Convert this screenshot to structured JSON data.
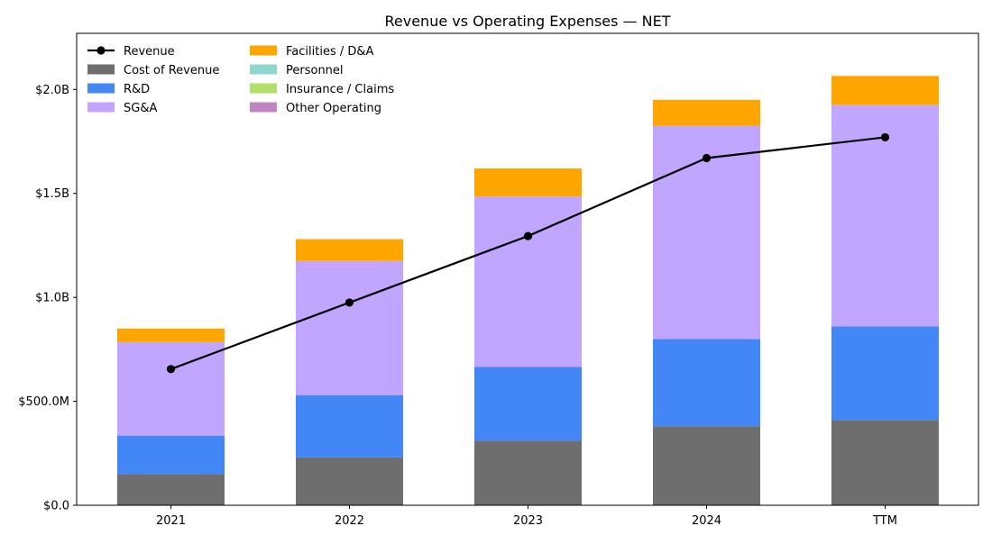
{
  "chart_data": {
    "type": "bar",
    "stacked": true,
    "title": "Revenue vs Operating Expenses — NET",
    "categories": [
      "2021",
      "2022",
      "2023",
      "2024",
      "TTM"
    ],
    "ylim": [
      0,
      2.27
    ],
    "yticks": [
      {
        "value": 0,
        "label": "$0.0"
      },
      {
        "value": 0.5,
        "label": "$500.0M"
      },
      {
        "value": 1.0,
        "label": "$1.0B"
      },
      {
        "value": 1.5,
        "label": "$1.5B"
      },
      {
        "value": 2.0,
        "label": "$2.0B"
      }
    ],
    "series": [
      {
        "name": "Cost of Revenue",
        "color": "#6e6e6e",
        "values": [
          0.15,
          0.23,
          0.31,
          0.38,
          0.41
        ]
      },
      {
        "name": "R&D",
        "color": "#4287f5",
        "values": [
          0.185,
          0.3,
          0.355,
          0.42,
          0.45
        ]
      },
      {
        "name": "SG&A",
        "color": "#c0a6ff",
        "values": [
          0.45,
          0.645,
          0.82,
          1.025,
          1.065
        ]
      },
      {
        "name": "Facilities / D&A",
        "color": "#ffa500",
        "values": [
          0.065,
          0.105,
          0.135,
          0.125,
          0.14
        ]
      },
      {
        "name": "Personnel",
        "color": "#8fd6cc",
        "values": [
          0,
          0,
          0,
          0,
          0
        ]
      },
      {
        "name": "Insurance / Claims",
        "color": "#b2df6a",
        "values": [
          0,
          0,
          0,
          0,
          0
        ]
      },
      {
        "name": "Other Operating",
        "color": "#c084c0",
        "values": [
          0,
          0,
          0,
          0,
          0
        ]
      }
    ],
    "line_series": {
      "name": "Revenue",
      "color": "#000000",
      "values": [
        0.655,
        0.975,
        1.295,
        1.67,
        1.77
      ]
    },
    "legend_position": "top-left",
    "grid": false
  }
}
